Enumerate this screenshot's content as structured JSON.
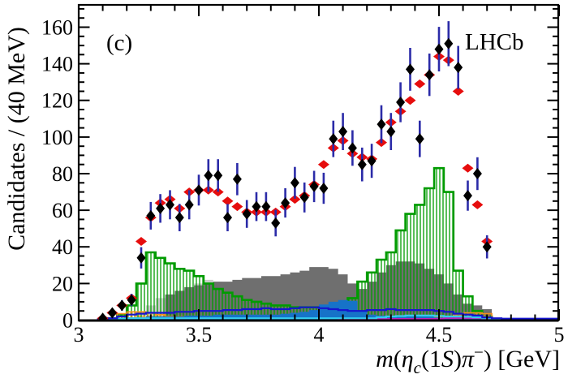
{
  "chart_data": {
    "type": "composite-histogram",
    "panel_label": "(c)",
    "experiment_label": "LHCb",
    "ylabel": "Candidates / (40 MeV)",
    "xlabel": "m(η_c(1S)π⁻) [GeV]",
    "xlabel_parts": {
      "m": "m",
      "p1": "(",
      "eta": "η",
      "c": "c",
      "p2": "(1",
      "s": "S",
      "p3": ")",
      "pi": "π",
      "minus": "−",
      "tail": ") [GeV]"
    },
    "xlim": [
      3,
      5
    ],
    "ylim": [
      0,
      172
    ],
    "grid": false,
    "legend": "none",
    "bin_width": 0.04,
    "x_major_ticks": {
      "values": [
        3,
        3.5,
        4,
        4.5,
        5
      ],
      "labels": [
        "3",
        "3.5",
        "4",
        "4.5",
        "5"
      ]
    },
    "x_minor_step": 0.1,
    "y_major_ticks": {
      "values": [
        0,
        20,
        40,
        60,
        80,
        100,
        120,
        140,
        160
      ],
      "labels": [
        "0",
        "20",
        "40",
        "60",
        "80",
        "100",
        "120",
        "140",
        "160"
      ]
    },
    "y_minor_step": 5,
    "colors": {
      "data_marker": "#000000",
      "error_bar": "#2b2ba8",
      "fit_marker": "#e60d0d",
      "green_component": "#009b00",
      "dark_gray_component": "#6f6f6f",
      "light_gray_component": "#cdcdcd",
      "blue_filled_component": "#1673c8",
      "blue_line_component": "#1515cf",
      "cyan_line_component": "#33ccee",
      "orange_component": "#f28f1e",
      "magenta_line_component": "#bb22bb",
      "frame": "#000000"
    },
    "series": [
      {
        "name": "light-gray-filled-histogram",
        "style": "fill",
        "color": "#cdcdcd",
        "x_start": 3.24,
        "values": [
          3,
          8,
          12,
          13,
          15,
          17,
          20,
          22,
          21,
          20,
          19,
          18,
          16,
          15,
          14,
          13,
          13,
          13,
          13,
          13,
          13,
          12,
          12,
          13,
          14,
          15,
          16,
          16,
          16,
          16,
          15,
          14,
          12,
          9,
          6,
          4,
          2
        ]
      },
      {
        "name": "dark-gray-filled-histogram",
        "style": "fill",
        "color": "#6f6f6f",
        "x_start": 3.36,
        "values": [
          14,
          16,
          18,
          19,
          20,
          21,
          21,
          22,
          23,
          23,
          24,
          24,
          25,
          26,
          27,
          29,
          29,
          28,
          25,
          20,
          17,
          21,
          26,
          30,
          32,
          32,
          31,
          28,
          25,
          20,
          14,
          9,
          8,
          6
        ]
      },
      {
        "name": "green-hatched-histogram",
        "style": "hatch",
        "color": "#009b00",
        "pattern": "hatch-green",
        "lw": 2.6,
        "x_start": 3.12,
        "values": [
          1,
          3,
          8,
          20,
          37,
          34,
          31,
          28,
          27,
          24,
          20,
          17,
          15,
          13,
          11,
          10,
          9,
          8,
          8,
          7,
          7,
          7,
          7,
          7,
          8,
          12,
          21,
          26,
          33,
          37,
          49,
          58,
          63,
          72,
          83,
          70,
          27,
          13,
          5,
          2
        ]
      },
      {
        "name": "orange-hatched-histogram",
        "style": "hatch",
        "color": "#f28f1e",
        "pattern": "dots-orange",
        "lw": 1.6,
        "x_start": 3.12,
        "values": [
          1,
          3.5,
          4.5,
          4.5,
          4,
          3,
          2,
          1.8,
          1.5,
          1.5,
          1.5,
          1.5,
          1.5,
          1.5,
          1.5,
          1.5,
          1.5,
          1.5,
          1.5,
          1.5,
          1.5,
          1.5,
          1.5,
          1.5,
          1.5,
          1.5,
          1.5,
          1.5,
          1.5,
          1.5,
          1.5,
          1.5,
          1.5,
          1.5,
          1.5,
          2,
          3,
          4,
          4,
          3.5,
          1
        ]
      },
      {
        "name": "blue-filled-histogram",
        "style": "fill",
        "color": "#1673c8",
        "x_start": 3.12,
        "values": [
          1,
          1,
          1.5,
          1.5,
          2,
          2,
          2,
          2,
          2.5,
          2.5,
          2.5,
          3,
          3,
          3,
          3,
          3,
          3,
          3,
          3.5,
          4,
          4.5,
          5.5,
          8.5,
          10,
          11,
          10.5,
          5,
          3,
          2.5,
          2,
          2,
          2,
          2,
          2,
          1.5,
          1.5,
          1.5,
          1.5,
          1,
          1,
          0.8
        ]
      },
      {
        "name": "magenta-line-histogram",
        "style": "line",
        "color": "#bb22bb",
        "lw": 1.8,
        "x_start": 4.08,
        "values": [
          0.7,
          0.7,
          0.7,
          0.7,
          0.7,
          0.7,
          0.7,
          0.7,
          0.7,
          0.7,
          0.7,
          1,
          1,
          1,
          1,
          0.7
        ]
      },
      {
        "name": "cyan-line-histogram",
        "style": "line",
        "color": "#33ccee",
        "lw": 2.2,
        "x_start": 3.08,
        "values": [
          0.3,
          0.5,
          0.8,
          1,
          1,
          1,
          1,
          1,
          1,
          1,
          1,
          1,
          1,
          1,
          1,
          1,
          1,
          1,
          1,
          1,
          1,
          1,
          1,
          1,
          1,
          1,
          1,
          1,
          1,
          1.5,
          2,
          2.2,
          2.5,
          2.5,
          2.5,
          2.3,
          2,
          2,
          1.8,
          1.5,
          1,
          0.5,
          0.3
        ]
      },
      {
        "name": "blue-line-histogram",
        "style": "line",
        "color": "#1515cf",
        "lw": 2.2,
        "x_start": 3.08,
        "values": [
          0.5,
          1,
          2,
          3,
          3.5,
          4,
          4,
          4,
          4.5,
          4.5,
          5,
          5,
          5,
          5.5,
          5.5,
          6,
          6,
          6.5,
          6,
          6,
          6.5,
          7,
          7,
          6.5,
          6,
          5.5,
          5,
          5,
          5.5,
          5.5,
          6,
          5.5,
          5.5,
          5.5,
          5.5,
          5,
          4.5,
          3.5,
          3,
          2.5,
          1.5,
          1,
          0.8,
          0.8,
          0.8,
          0.8,
          0.8,
          0.8
        ]
      },
      {
        "name": "fit-points",
        "style": "points",
        "color": "#e60d0d",
        "marker": "diamond-wide",
        "x": [
          3.1,
          3.14,
          3.18,
          3.22,
          3.26,
          3.3,
          3.34,
          3.38,
          3.42,
          3.46,
          3.5,
          3.54,
          3.58,
          3.62,
          3.66,
          3.7,
          3.74,
          3.78,
          3.82,
          3.86,
          3.9,
          3.94,
          3.98,
          4.02,
          4.06,
          4.1,
          4.14,
          4.18,
          4.22,
          4.26,
          4.3,
          4.34,
          4.38,
          4.42,
          4.46,
          4.5,
          4.54,
          4.58,
          4.62,
          4.66,
          4.7
        ],
        "y": [
          1,
          4,
          8,
          12,
          43,
          56,
          64,
          66,
          61,
          70,
          71,
          71,
          70,
          65,
          62,
          59,
          59,
          59,
          59,
          62,
          66,
          68,
          74,
          85,
          94,
          98,
          91,
          89,
          88,
          97,
          108,
          114,
          120,
          129,
          134,
          144,
          142,
          125,
          83,
          63,
          43
        ]
      },
      {
        "name": "data-points",
        "style": "points-error",
        "color": "#000000",
        "err_color": "#2b2ba8",
        "marker": "diamond-tall",
        "x": [
          3.1,
          3.14,
          3.18,
          3.22,
          3.26,
          3.3,
          3.34,
          3.38,
          3.42,
          3.46,
          3.5,
          3.54,
          3.58,
          3.62,
          3.66,
          3.7,
          3.74,
          3.78,
          3.82,
          3.86,
          3.9,
          3.94,
          3.98,
          4.02,
          4.06,
          4.1,
          4.14,
          4.18,
          4.22,
          4.26,
          4.3,
          4.34,
          4.38,
          4.42,
          4.46,
          4.5,
          4.54,
          4.58,
          4.62,
          4.66,
          4.7
        ],
        "y": [
          1,
          4,
          8,
          11,
          34,
          57,
          61,
          63,
          56,
          63,
          71,
          79,
          79,
          56,
          77,
          58,
          62,
          62,
          53,
          64,
          75,
          67,
          73,
          72,
          99,
          103,
          94,
          85,
          87,
          107,
          103,
          119,
          137,
          99,
          134,
          148,
          151,
          138,
          68,
          80,
          40
        ]
      }
    ]
  }
}
